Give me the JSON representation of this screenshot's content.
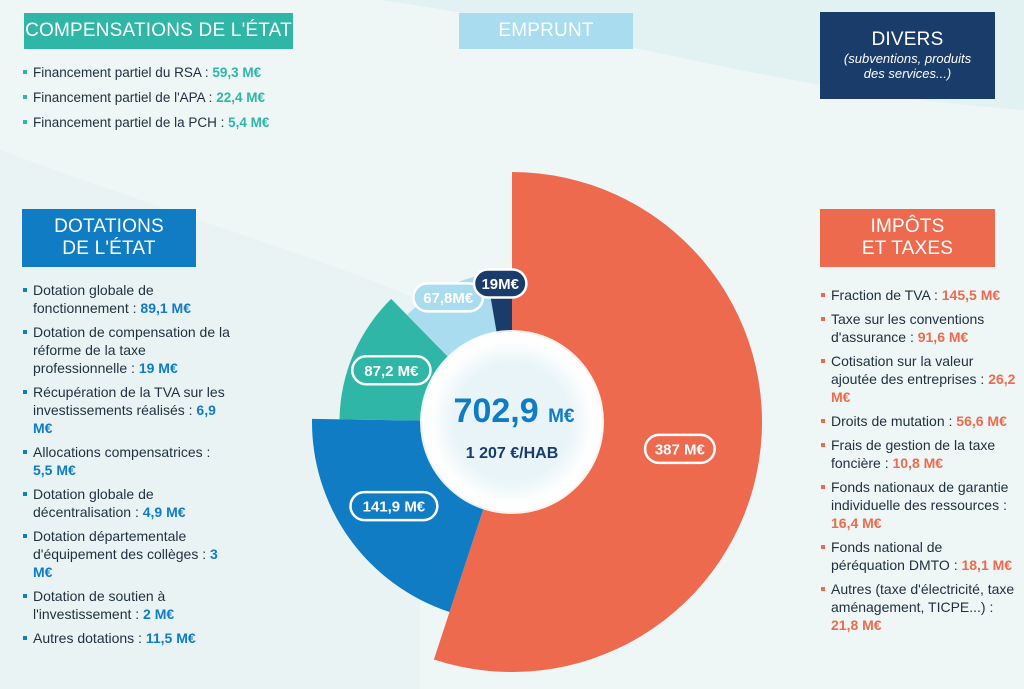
{
  "headers": {
    "compensations": "COMPENSATIONS DE L'ÉTAT",
    "emprunt": "EMPRUNT",
    "divers": "DIVERS",
    "divers_sub_1": "(subventions, produits",
    "divers_sub_2": "des services...)",
    "dotations_1": "DOTATIONS",
    "dotations_2": "DE L'ÉTAT",
    "impots_1": "IMPÔTS",
    "impots_2": "ET TAXES"
  },
  "compensations_items": [
    {
      "label": "Financement partiel du RSA : ",
      "amount": "59,3 M€"
    },
    {
      "label": "Financement partiel de l'APA : ",
      "amount": "22,4 M€"
    },
    {
      "label": "Financement partiel de la PCH : ",
      "amount": "5,4 M€"
    }
  ],
  "dotations_items": [
    {
      "label": "Dotation globale de fonctionnement : ",
      "amount": "89,1 M€"
    },
    {
      "label": "Dotation de compensation de la réforme de la taxe professionnelle : ",
      "amount": "19 M€"
    },
    {
      "label": "Récupération de la TVA sur les investissements réalisés : ",
      "amount": "6,9 M€"
    },
    {
      "label": "Allocations compensatrices : ",
      "amount": "5,5 M€"
    },
    {
      "label": "Dotation globale de décentralisation : ",
      "amount": "4,9 M€"
    },
    {
      "label": "Dotation départementale d'équipement des collèges : ",
      "amount": "3 M€"
    },
    {
      "label": "Dotation de soutien à l'investissement : ",
      "amount": "2 M€"
    },
    {
      "label": "Autres dotations : ",
      "amount": "11,5 M€"
    }
  ],
  "impots_items": [
    {
      "label": "Fraction de TVA : ",
      "amount": "145,5 M€"
    },
    {
      "label": "Taxe sur les conventions d'assurance : ",
      "amount": "91,6 M€"
    },
    {
      "label": "Cotisation sur la valeur ajoutée des entreprises : ",
      "amount": "26,2 M€"
    },
    {
      "label": "Droits de mutation : ",
      "amount": "56,6 M€"
    },
    {
      "label": "Frais de gestion de la taxe foncière : ",
      "amount": "10,8 M€"
    },
    {
      "label": "Fonds nationaux de garantie individuelle des ressources : ",
      "amount": "16,4 M€"
    },
    {
      "label": "Fonds national de péréquation DMTO : ",
      "amount": "18,1 M€"
    },
    {
      "label": "Autres (taxe d'électricité, taxe aménagement, TICPE...) : ",
      "amount": "21,8 M€"
    }
  ],
  "chart_data": {
    "type": "pie",
    "title": "",
    "total_label": "702,9",
    "total_unit": "M€",
    "total_sub": "1 207 €/HAB",
    "slices": [
      {
        "name": "Impôts et taxes",
        "value": 387,
        "label": "387 M€",
        "color": "#ee6a4e",
        "radius": 1.0
      },
      {
        "name": "Dotations de l'État",
        "value": 141.9,
        "label": "141,9 M€",
        "color": "#0f7cc4",
        "radius": 0.8
      },
      {
        "name": "Compensations de l'État",
        "value": 87.2,
        "label": "87,2 M€",
        "color": "#2fb6a6",
        "radius": 0.69
      },
      {
        "name": "Emprunt",
        "value": 67.8,
        "label": "67,8M€",
        "color": "#a8dcee",
        "radius": 0.6
      },
      {
        "name": "Divers",
        "value": 19,
        "label": "19M€",
        "color": "#1a3c6a",
        "radius": 0.54
      }
    ]
  }
}
